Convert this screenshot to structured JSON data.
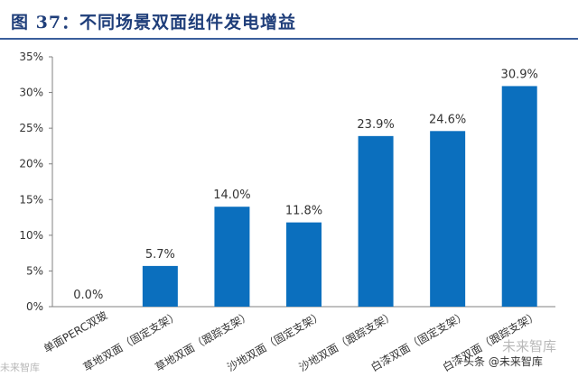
{
  "title": "图 37：不同场景双面组件发电增益",
  "chart_data": {
    "type": "bar",
    "categories": [
      "单面PERC双玻",
      "草地双面（固定支架）",
      "草地双面（跟踪支架）",
      "沙地双面（固定支架）",
      "沙地双面（跟踪支架）",
      "白漆双面（固定支架）",
      "白漆双面（跟踪支架）"
    ],
    "values": [
      0.0,
      5.7,
      14.0,
      11.8,
      23.9,
      24.6,
      30.9
    ],
    "data_labels": [
      "0.0%",
      "5.7%",
      "14.0%",
      "11.8%",
      "23.9%",
      "24.6%",
      "30.9%"
    ],
    "ylim": [
      0,
      35
    ],
    "yticks": [
      0,
      5,
      10,
      15,
      20,
      25,
      30,
      35
    ],
    "ytick_labels": [
      "0%",
      "5%",
      "10%",
      "15%",
      "20%",
      "25%",
      "30%",
      "35%"
    ],
    "xlabel": "",
    "ylabel": "",
    "grid": false,
    "bar_color": "#0B6FBE",
    "label_rotation_deg": -30
  },
  "watermarks": [
    "未来智库",
    "未来智库"
  ],
  "footer": "头条 @未来智库",
  "colors": {
    "title": "#1F3E7A",
    "title_rule": "#3A5E9C",
    "axis": "#808080"
  }
}
